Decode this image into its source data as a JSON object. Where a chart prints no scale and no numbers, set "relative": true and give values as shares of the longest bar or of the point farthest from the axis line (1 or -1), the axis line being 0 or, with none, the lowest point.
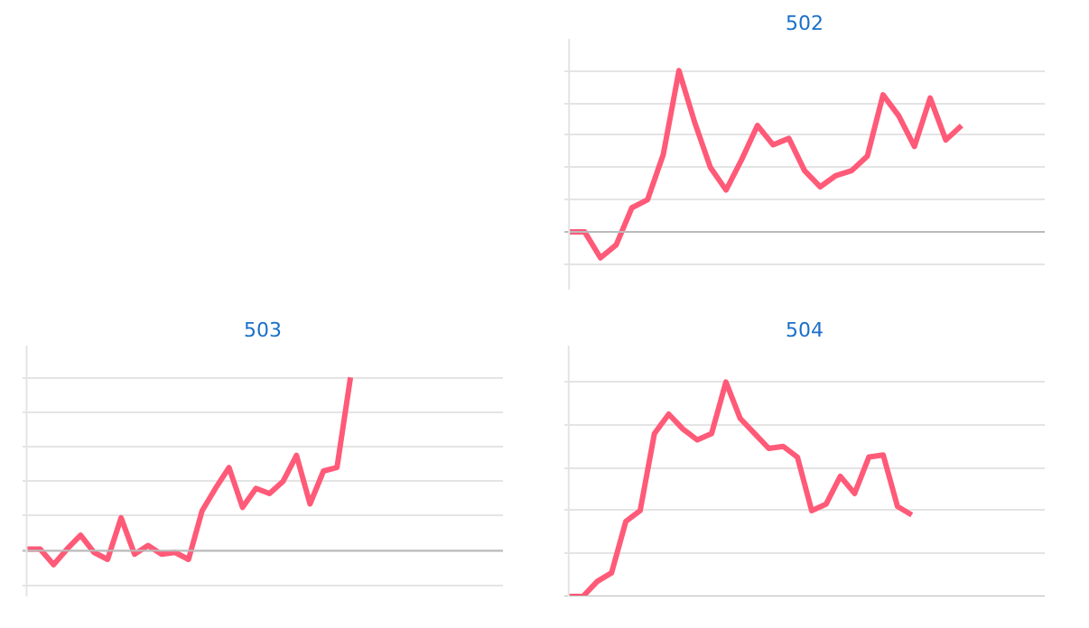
{
  "chart_data": [
    {
      "type": "line",
      "title": "502",
      "relative": true,
      "grid": "y",
      "color": "#ff5a78",
      "categories": [
        null,
        null,
        null,
        null,
        null,
        null,
        null,
        null,
        null,
        null,
        null,
        null,
        null,
        null,
        null,
        null,
        null,
        null,
        null,
        null,
        null,
        null,
        null,
        null,
        null,
        null,
        null,
        null,
        null,
        null,
        null
      ],
      "values": [
        0,
        0,
        -0.16,
        -0.08,
        0.15,
        0.2,
        0.48,
        1,
        0.68,
        0.4,
        0.26,
        0.45,
        0.66,
        0.54,
        0.58,
        0.38,
        0.28,
        0.35,
        0.38,
        0.47,
        0.85,
        0.72,
        0.53,
        0.83,
        0.57,
        0.66,
        null,
        null,
        null,
        null,
        null
      ]
    },
    {
      "type": "line",
      "title": "503",
      "relative": true,
      "grid": "y",
      "color": "#ff5a78",
      "categories": [
        null,
        null,
        null,
        null,
        null,
        null,
        null,
        null,
        null,
        null,
        null,
        null,
        null,
        null,
        null,
        null,
        null,
        null,
        null,
        null,
        null,
        null,
        null,
        null,
        null,
        null,
        null,
        null,
        null,
        null,
        null,
        null,
        null,
        null,
        null,
        null
      ],
      "values": [
        0.01,
        0.01,
        -0.08,
        0.01,
        0.09,
        -0.01,
        -0.05,
        0.19,
        -0.02,
        0.03,
        -0.02,
        -0.01,
        -0.05,
        0.23,
        0.36,
        0.48,
        0.25,
        0.36,
        0.33,
        0.4,
        0.55,
        0.27,
        0.46,
        0.48,
        1,
        null,
        null,
        null,
        null,
        null,
        null,
        null,
        null,
        null,
        null,
        null
      ]
    },
    {
      "type": "line",
      "title": "504",
      "relative": true,
      "grid": "y",
      "color": "#ff5a78",
      "categories": [
        null,
        null,
        null,
        null,
        null,
        null,
        null,
        null,
        null,
        null,
        null,
        null,
        null,
        null,
        null,
        null,
        null,
        null,
        null,
        null,
        null,
        null,
        null,
        null,
        null,
        null,
        null,
        null,
        null,
        null,
        null,
        null,
        null,
        null
      ],
      "values": [
        0,
        0,
        0.07,
        0.11,
        0.35,
        0.4,
        0.76,
        0.85,
        0.78,
        0.73,
        0.76,
        1,
        0.83,
        0.76,
        0.69,
        0.7,
        0.65,
        0.4,
        0.43,
        0.56,
        0.48,
        0.65,
        0.66,
        0.42,
        0.38,
        null,
        null,
        null,
        null,
        null,
        null,
        null,
        null,
        null
      ]
    }
  ]
}
